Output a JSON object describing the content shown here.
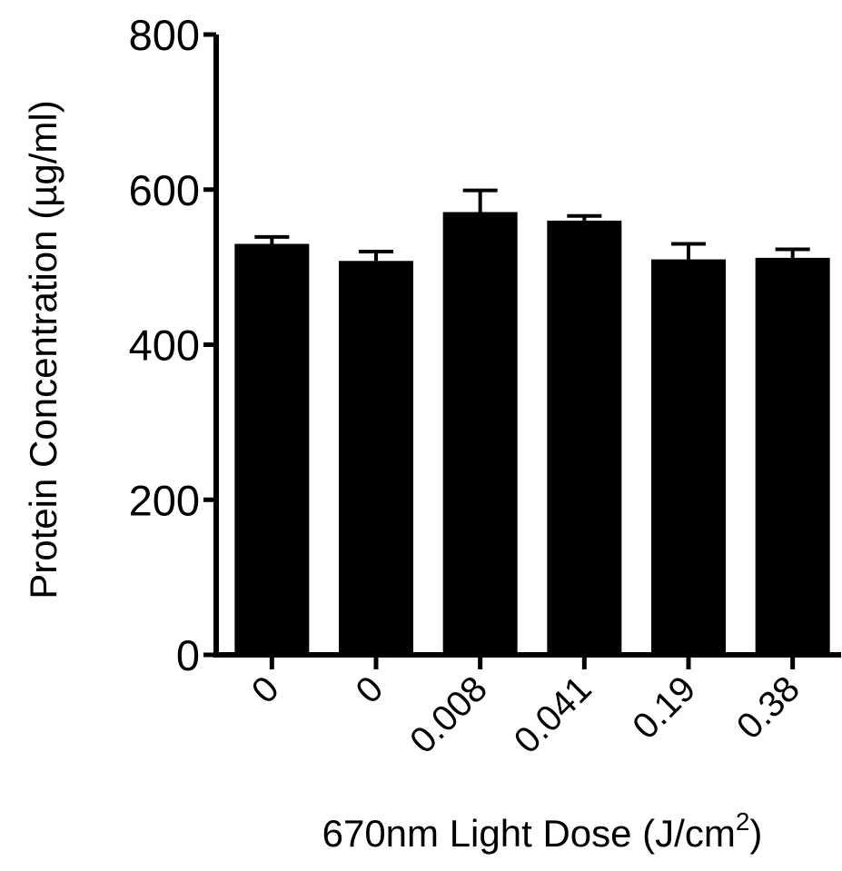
{
  "chart_data": {
    "type": "bar",
    "title": "",
    "xlabel": "670nm Light Dose (J/cm",
    "xlabel_superscript": "2",
    "xlabel_suffix": ")",
    "ylabel": "Protein Concentration (µg/ml)",
    "categories": [
      "0",
      "0",
      "0.008",
      "0.041",
      "0.19",
      "0.38"
    ],
    "values": [
      530,
      508,
      571,
      560,
      510,
      512
    ],
    "error_upper": [
      539,
      520,
      599,
      566,
      530,
      523
    ],
    "ylim": [
      0,
      800
    ],
    "yticks": [
      0,
      200,
      400,
      600,
      800
    ],
    "ytick_labels": [
      "0",
      "200",
      "400",
      "600",
      "800"
    ],
    "bar_color": "#000000",
    "grid": false,
    "legend": "none"
  }
}
